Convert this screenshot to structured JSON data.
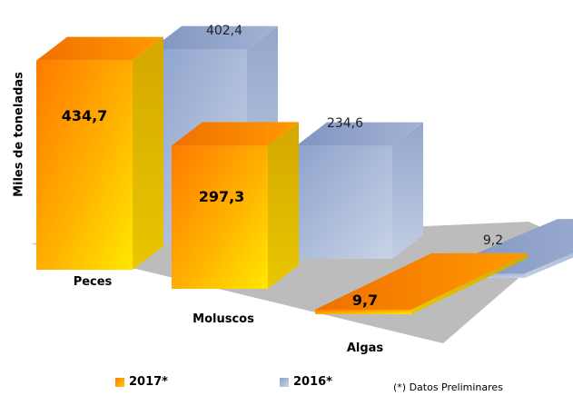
{
  "chart_data": {
    "type": "bar",
    "style": "3d-clustered-bar",
    "categories": [
      "Peces",
      "Moluscos",
      "Algas"
    ],
    "series": [
      {
        "name": "2017*",
        "values": [
          434.7,
          297.3,
          9.7
        ],
        "labels": [
          "434,7",
          "297,3",
          "9,7"
        ],
        "color": "#f07b00"
      },
      {
        "name": "2016*",
        "values": [
          402.4,
          234.6,
          9.2
        ],
        "labels": [
          "402,4",
          "234,6",
          "9,2"
        ],
        "color": "#8fa3c8"
      }
    ],
    "ylabel": "Miles de toneladas",
    "legend_position": "bottom",
    "note": "(*) Datos Preliminares",
    "grid": false
  }
}
